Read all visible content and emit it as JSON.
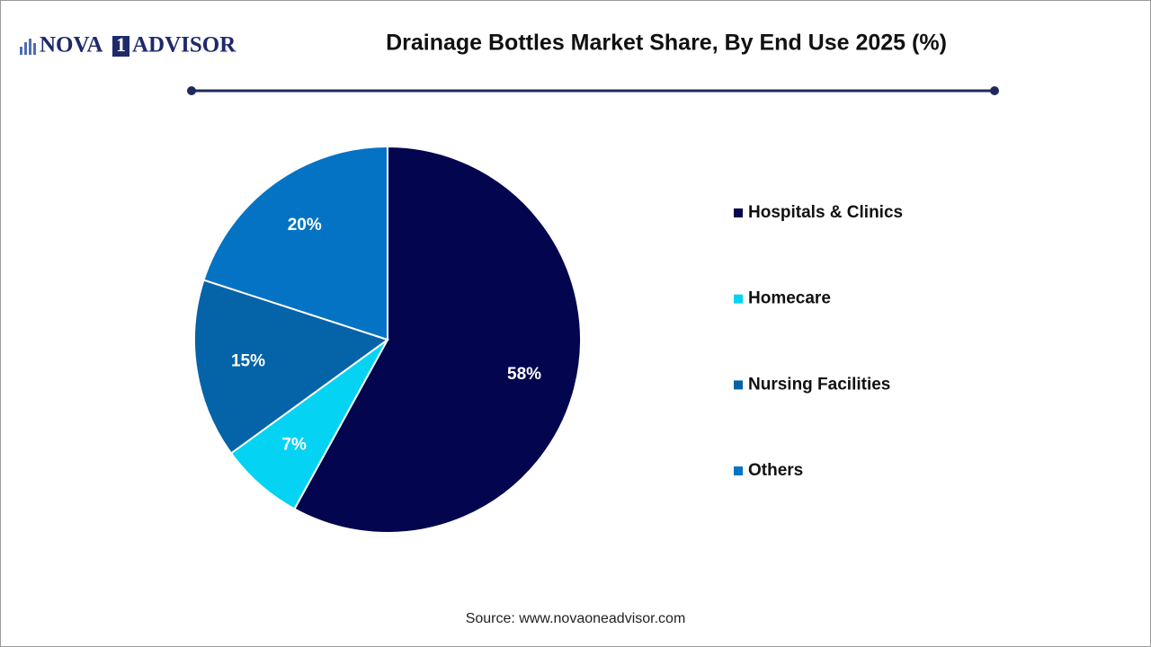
{
  "brand": [
    "NOVA",
    "1",
    "ADVISOR"
  ],
  "chart_data": {
    "type": "pie",
    "title": "Drainage Bottles Market Share, By End Use 2025 (%)",
    "categories": [
      "Hospitals & Clinics",
      "Homecare",
      "Nursing Facilities",
      "Others"
    ],
    "values": [
      58,
      7,
      15,
      20
    ],
    "value_labels": [
      "58%",
      "7%",
      "15%",
      "20%"
    ],
    "colors": [
      "#03064f",
      "#05d3f3",
      "#0563a7",
      "#0473c4"
    ],
    "source": "Source: www.novaoneadvisor.com",
    "legend": "right"
  }
}
